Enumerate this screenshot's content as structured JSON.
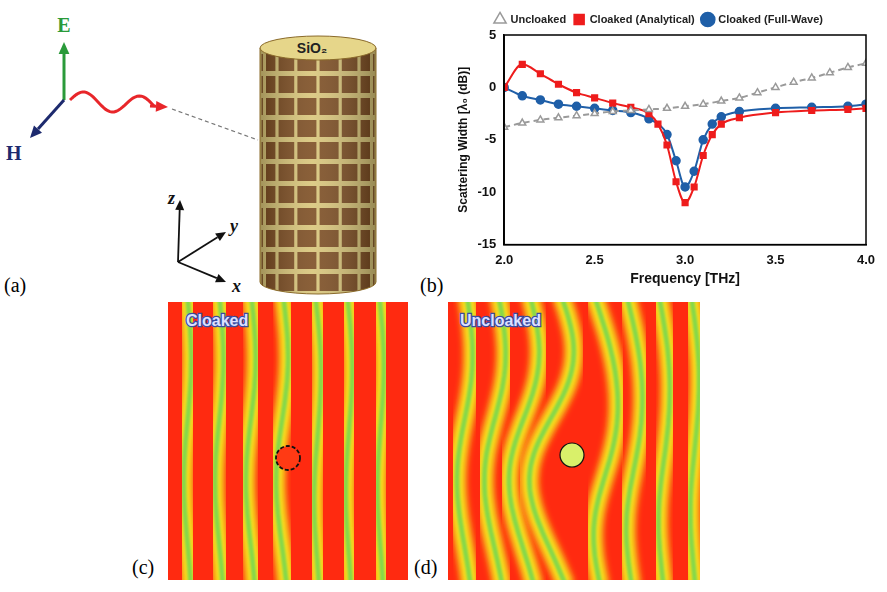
{
  "panels": {
    "a": {
      "label": "(a)",
      "material": "SiO₂",
      "E": "E",
      "H": "H",
      "axes": {
        "z": "z",
        "y": "y",
        "x": "x"
      }
    },
    "b": {
      "label": "(b)"
    },
    "c": {
      "label": "(c)",
      "title": "Cloaked"
    },
    "d": {
      "label": "(d)",
      "title": "Uncloaked"
    }
  },
  "chart_data": {
    "type": "line",
    "x_label": "Frequency [THz]",
    "y_label": "Scattering Width [λ₀ (dB)]",
    "xlim": [
      2.0,
      4.0
    ],
    "xticks": [
      {
        "value": 2.0,
        "label": "2.0"
      },
      2.5,
      {
        "value": 3.0,
        "label": "3.0"
      },
      3.5,
      {
        "value": 4.0,
        "label": "4.0"
      }
    ],
    "ylim": [
      -15,
      5
    ],
    "yticks": [
      -15,
      -10,
      -5,
      0,
      5
    ],
    "grid": false,
    "legend": "top",
    "series": [
      {
        "name": "Uncloaked",
        "color": "#9a9a9a",
        "marker": "triangle",
        "line_style": "dashed",
        "x": [
          2.0,
          2.1,
          2.2,
          2.3,
          2.4,
          2.5,
          2.6,
          2.7,
          2.8,
          2.9,
          3.0,
          3.1,
          3.2,
          3.3,
          3.4,
          3.5,
          3.6,
          3.7,
          3.8,
          3.9,
          4.0
        ],
        "values": [
          -3.8,
          -3.4,
          -3.1,
          -2.9,
          -2.7,
          -2.5,
          -2.3,
          -2.2,
          -2.1,
          -2.0,
          -1.8,
          -1.6,
          -1.3,
          -1.0,
          -0.5,
          0.0,
          0.5,
          0.9,
          1.4,
          1.9,
          2.3
        ]
      },
      {
        "name": "Cloaked (Analytical)",
        "color": "#ee1c1c",
        "marker": "square",
        "line_style": "solid",
        "x": [
          2.0,
          2.1,
          2.2,
          2.3,
          2.4,
          2.5,
          2.6,
          2.7,
          2.8,
          2.85,
          2.9,
          2.95,
          3.0,
          3.05,
          3.1,
          3.15,
          3.2,
          3.3,
          3.5,
          3.7,
          3.9,
          4.0
        ],
        "values": [
          0.0,
          2.2,
          1.3,
          0.3,
          -0.5,
          -1.0,
          -1.5,
          -1.9,
          -2.5,
          -3.5,
          -5.5,
          -9.0,
          -11.0,
          -9.5,
          -6.5,
          -4.5,
          -3.5,
          -2.9,
          -2.4,
          -2.2,
          -2.1,
          -2.0
        ]
      },
      {
        "name": "Cloaked (Full-Wave)",
        "color": "#1f5fa8",
        "marker": "circle",
        "line_style": "solid",
        "x": [
          2.0,
          2.1,
          2.2,
          2.3,
          2.4,
          2.5,
          2.6,
          2.7,
          2.8,
          2.9,
          2.95,
          3.0,
          3.05,
          3.1,
          3.15,
          3.2,
          3.3,
          3.5,
          3.7,
          3.9,
          4.0
        ],
        "values": [
          0.0,
          -0.8,
          -1.2,
          -1.6,
          -1.8,
          -2.0,
          -2.2,
          -2.4,
          -3.0,
          -4.5,
          -7.0,
          -9.5,
          -8.0,
          -5.0,
          -3.5,
          -2.8,
          -2.3,
          -2.0,
          -1.9,
          -1.8,
          -1.6
        ]
      }
    ]
  }
}
